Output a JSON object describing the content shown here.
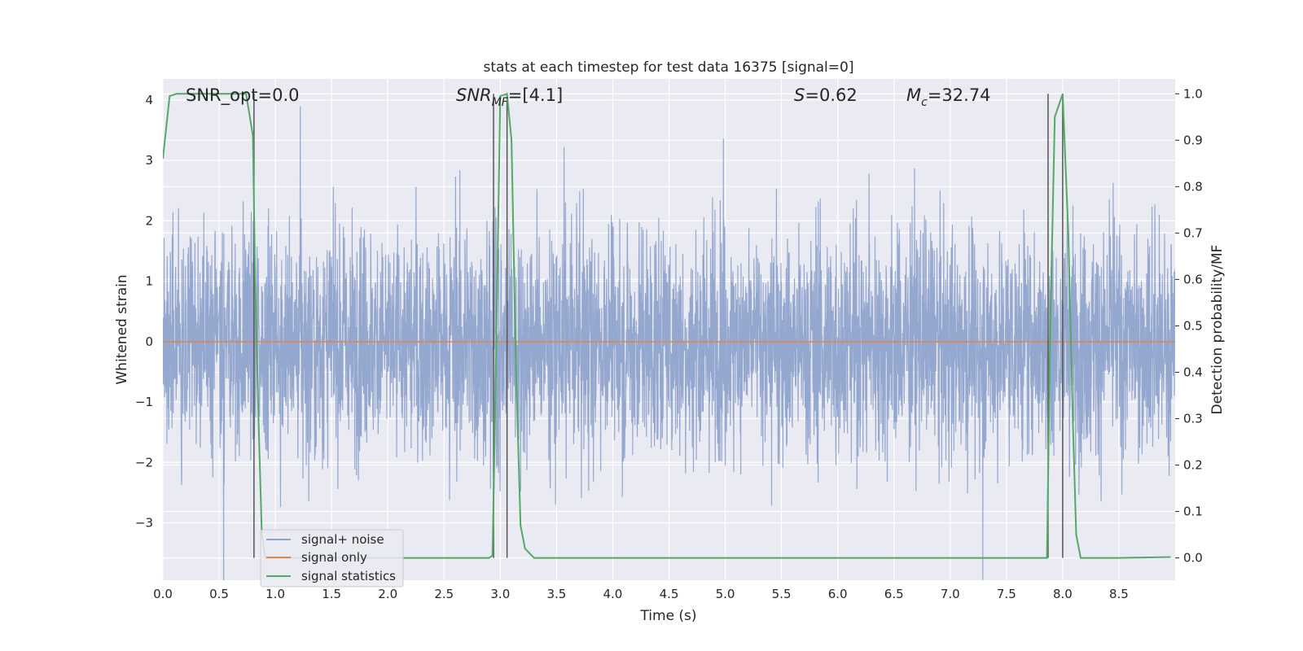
{
  "chart_data": {
    "type": "line",
    "title": "stats at each timestep for test data 16375 [signal=0]",
    "xlabel": "Time (s)",
    "ylabel_left": "Whitened strain",
    "ylabel_right": "Detection probability/MF",
    "xlim": [
      0.0,
      9.0
    ],
    "ylim_left": [
      -3.95,
      4.35
    ],
    "ylim_right": [
      -0.048,
      1.032
    ],
    "x_ticks": [
      "0.0",
      "0.5",
      "1.0",
      "1.5",
      "2.0",
      "2.5",
      "3.0",
      "3.5",
      "4.0",
      "4.5",
      "5.0",
      "5.5",
      "6.0",
      "6.5",
      "7.0",
      "7.5",
      "8.0",
      "8.5"
    ],
    "y_ticks_left": [
      "−3",
      "−2",
      "−1",
      "0",
      "1",
      "2",
      "3",
      "4"
    ],
    "y_ticks_right": [
      "0.0",
      "0.1",
      "0.2",
      "0.3",
      "0.4",
      "0.5",
      "0.6",
      "0.7",
      "0.8",
      "0.9",
      "1.0"
    ],
    "grid": true,
    "legend_position": "lower-left",
    "annotations": {
      "snr_opt": "SNR_opt=0.0",
      "snr_mf_main": "SNR",
      "snr_mf_sub": "MF",
      "snr_mf_rest": "=[4.1]",
      "s_main": "S",
      "s_rest": "=0.62",
      "mc_main": "M",
      "mc_sub": "c",
      "mc_rest": "=32.74"
    },
    "noise_envelope": {
      "typical_amplitude": 1.7,
      "peak_amplitude": 4.0,
      "sample_rate_note": "dense noise trace, approx. 2048 samples per second"
    },
    "series": [
      {
        "name": "signal+ noise",
        "color": "#8fa3cc",
        "axis": "left",
        "kind": "noise-trace"
      },
      {
        "name": "signal only",
        "color": "#dd8452",
        "axis": "left",
        "x": [
          0.0,
          9.0
        ],
        "y": [
          0.0,
          0.0
        ]
      },
      {
        "name": "signal statistics",
        "color": "#55a868",
        "axis": "right",
        "x": [
          0.0,
          0.06,
          0.12,
          0.2,
          0.5,
          0.74,
          0.8,
          0.82,
          0.85,
          0.88,
          0.91,
          1.0,
          2.5,
          2.9,
          2.93,
          2.95,
          3.0,
          3.06,
          3.1,
          3.14,
          3.18,
          3.22,
          3.3,
          3.5,
          5.0,
          7.86,
          7.89,
          7.93,
          8.0,
          8.05,
          8.09,
          8.12,
          8.16,
          8.5,
          8.96
        ],
        "y": [
          0.86,
          0.995,
          1.0,
          1.0,
          1.0,
          1.0,
          0.91,
          0.6,
          0.3,
          0.05,
          0.0,
          0.0,
          0.0,
          0.0,
          0.005,
          0.25,
          0.995,
          1.0,
          0.9,
          0.4,
          0.07,
          0.02,
          0.0,
          0.0,
          0.0,
          0.0,
          0.5,
          0.95,
          1.0,
          0.7,
          0.3,
          0.05,
          0.0,
          0.0,
          0.002
        ]
      }
    ],
    "vlines": {
      "x": [
        0.81,
        2.94,
        3.06,
        7.87,
        8.0
      ],
      "color": "#555555"
    }
  }
}
